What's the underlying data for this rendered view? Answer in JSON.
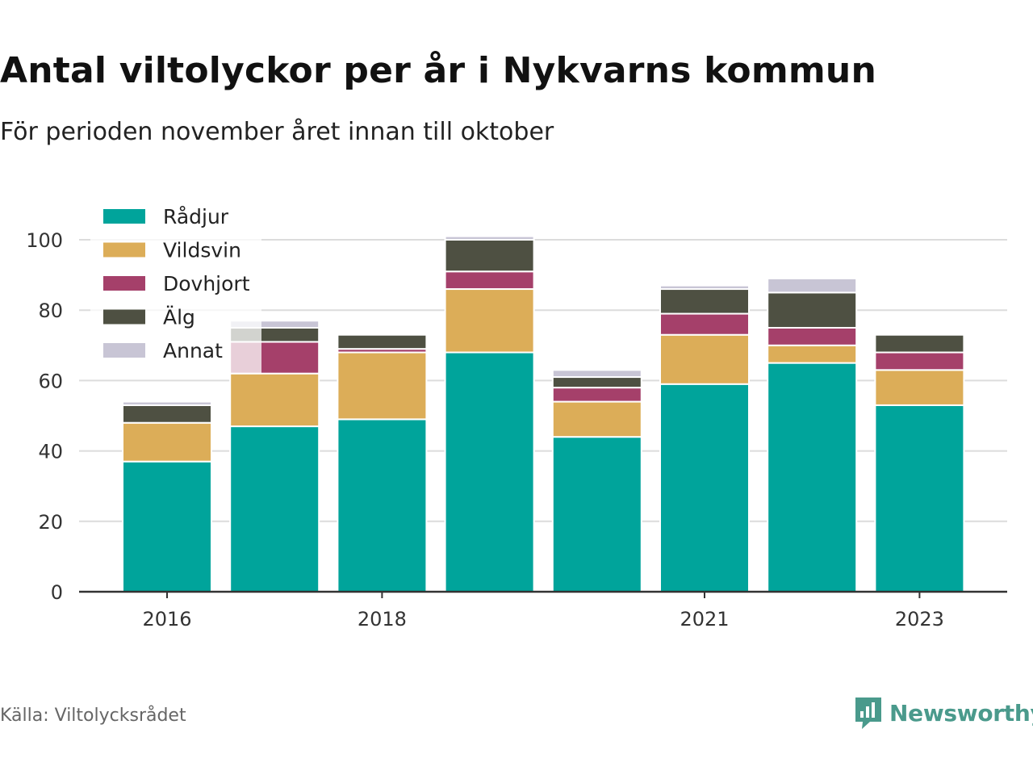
{
  "title": "Antal viltolyckor per år i Nykvarns kommun",
  "subtitle": "För perioden november året innan till oktober",
  "source": "Källa: Viltolycksrådet",
  "brand": {
    "name": "Newsworthy",
    "icon": "newsworthy-logo-icon",
    "color": "#4a9a8c"
  },
  "chart_data": {
    "type": "bar",
    "stacked": true,
    "x": [
      2016,
      2017,
      2018,
      2019,
      2020,
      2021,
      2022,
      2023
    ],
    "x_tick_labels": [
      "2016",
      "2018",
      "2021",
      "2023"
    ],
    "x_tick_values": [
      2016,
      2018,
      2021,
      2023
    ],
    "ylim": [
      0,
      100
    ],
    "y_ticks": [
      0,
      20,
      40,
      60,
      80,
      100
    ],
    "grid": true,
    "legend_position": "top-left",
    "series": [
      {
        "name": "Rådjur",
        "color": "#00a49b",
        "values": [
          37,
          47,
          49,
          68,
          44,
          59,
          65,
          53
        ]
      },
      {
        "name": "Vildsvin",
        "color": "#dcad58",
        "values": [
          11,
          15,
          19,
          18,
          10,
          14,
          5,
          10
        ]
      },
      {
        "name": "Dovhjort",
        "color": "#a5406a",
        "values": [
          0,
          9,
          1,
          5,
          4,
          6,
          5,
          5
        ]
      },
      {
        "name": "Älg",
        "color": "#4e5042",
        "values": [
          5,
          4,
          4,
          9,
          3,
          7,
          10,
          5
        ]
      },
      {
        "name": "Annat",
        "color": "#c8c5d5",
        "values": [
          1,
          2,
          0,
          1,
          2,
          1,
          4,
          0
        ]
      }
    ]
  }
}
